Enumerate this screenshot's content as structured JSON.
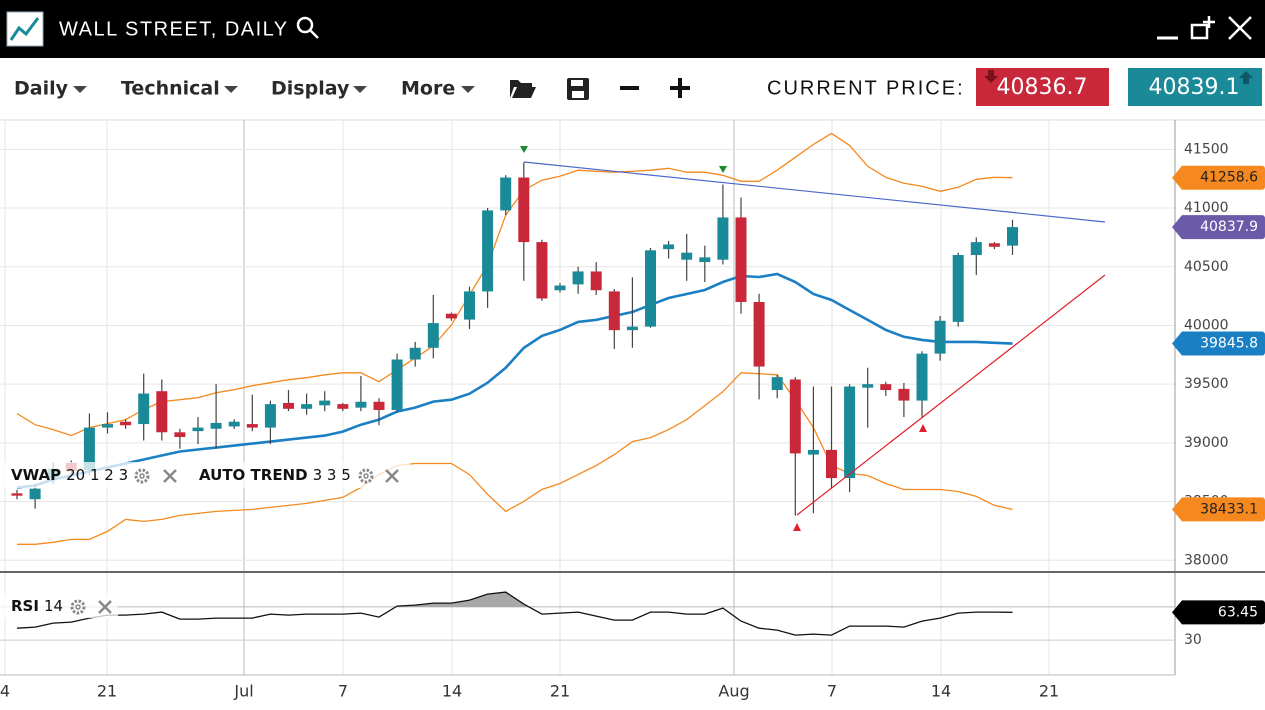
{
  "header": {
    "title": "WALL STREET, DAILY"
  },
  "toolbar": {
    "menus": [
      "Daily",
      "Technical",
      "Display",
      "More"
    ],
    "price_label": "CURRENT PRICE:",
    "bid": 40836.7,
    "ask": 40839.1
  },
  "chart_data": {
    "type": "candlestick",
    "ohlc": {
      "open": [
        38570,
        38520,
        38700,
        38830,
        38770,
        39130,
        39180,
        39160,
        39440,
        39090,
        39100,
        39120,
        39140,
        39160,
        39130,
        39340,
        39290,
        39320,
        39330,
        39300,
        39350,
        39280,
        39710,
        39810,
        40100,
        40050,
        40290,
        40980,
        41260,
        40710,
        40300,
        40350,
        40460,
        40290,
        39960,
        39990,
        40650,
        40560,
        40540,
        40560,
        40920,
        40200,
        39450,
        39540,
        38900,
        38940,
        38700,
        39470,
        39500,
        39460,
        39360,
        39760,
        40030,
        40600,
        40700,
        40680
      ],
      "high": [
        38600,
        38650,
        38830,
        38850,
        39250,
        39260,
        39200,
        39590,
        39540,
        39120,
        39220,
        39500,
        39200,
        39410,
        39360,
        39450,
        39420,
        39440,
        39340,
        39570,
        39380,
        39760,
        39860,
        40260,
        40110,
        40330,
        41000,
        41280,
        41390,
        40730,
        40360,
        40500,
        40540,
        40310,
        40410,
        40660,
        40720,
        40780,
        40680,
        41200,
        41090,
        40270,
        39580,
        39560,
        39480,
        39480,
        39500,
        39640,
        39520,
        39510,
        39780,
        40080,
        40620,
        40750,
        40710,
        40900
      ],
      "low": [
        38520,
        38440,
        38650,
        38720,
        38720,
        39080,
        39120,
        39020,
        39020,
        38950,
        38990,
        38950,
        39120,
        39100,
        38990,
        39270,
        39240,
        39270,
        39270,
        39270,
        39150,
        39260,
        39650,
        39720,
        40040,
        39970,
        40150,
        40940,
        40380,
        40210,
        40280,
        40270,
        40260,
        39800,
        39810,
        39980,
        40570,
        40380,
        40370,
        40520,
        40100,
        39370,
        39380,
        38380,
        38400,
        38610,
        38580,
        39130,
        39400,
        39220,
        39220,
        39700,
        39990,
        40430,
        40650,
        40600
      ],
      "close": [
        38550,
        38610,
        38780,
        38760,
        39130,
        39160,
        39150,
        39420,
        39090,
        39050,
        39130,
        39170,
        39180,
        39130,
        39330,
        39290,
        39330,
        39360,
        39290,
        39350,
        39280,
        39710,
        39810,
        40020,
        40060,
        40290,
        40980,
        41260,
        40710,
        40230,
        40340,
        40460,
        40300,
        39960,
        39990,
        40640,
        40690,
        40620,
        40580,
        40920,
        40200,
        39650,
        39560,
        38910,
        38940,
        38700,
        39480,
        39500,
        39450,
        39360,
        39760,
        40040,
        40600,
        40710,
        40670,
        40837.9
      ]
    },
    "up_color": "#1a8a99",
    "down_color": "#c8283a",
    "last_color": "#6a5aa8",
    "ylim": [
      37900,
      41750
    ],
    "yticks": [
      38000,
      38500,
      39000,
      39500,
      40000,
      40500,
      41000,
      41500
    ],
    "grid": true,
    "xtick_labels": [
      "4",
      "21",
      "Jul",
      "7",
      "14",
      "21",
      "Aug",
      "7",
      "14",
      "21"
    ],
    "lines": [
      {
        "color": "#1b7fc4",
        "values": [
          38620,
          38637,
          38688,
          38722,
          38756,
          38790,
          38824,
          38858,
          38892,
          38926,
          38943,
          38960,
          38977,
          38994,
          39011,
          39028,
          39045,
          39062,
          39096,
          39155,
          39198,
          39266,
          39300,
          39351,
          39368,
          39419,
          39512,
          39639,
          39809,
          39911,
          39962,
          40030,
          40047,
          40081,
          40115,
          40175,
          40234,
          40268,
          40302,
          40370,
          40421,
          40413,
          40438,
          40370,
          40268,
          40217,
          40132,
          40047,
          39962,
          39903,
          39877,
          39860,
          39860,
          39860,
          39852,
          39845.8
        ]
      },
      {
        "color": "#f5891f",
        "values": [
          39250,
          39155,
          39113,
          39062,
          39130,
          39164,
          39198,
          39283,
          39351,
          39368,
          39385,
          39427,
          39453,
          39487,
          39512,
          39538,
          39555,
          39580,
          39597,
          39597,
          39521,
          39622,
          39724,
          39826,
          40005,
          40260,
          40515,
          40939,
          41152,
          41237,
          41271,
          41322,
          41313,
          41305,
          41313,
          41322,
          41339,
          41305,
          41305,
          41279,
          41228,
          41228,
          41322,
          41432,
          41542,
          41636,
          41534,
          41356,
          41262,
          41211,
          41186,
          41143,
          41177,
          41245,
          41262,
          41258.6
        ]
      },
      {
        "color": "#f5891f",
        "values": [
          38136,
          38136,
          38153,
          38178,
          38178,
          38246,
          38348,
          38331,
          38348,
          38382,
          38399,
          38416,
          38425,
          38433,
          38450,
          38467,
          38484,
          38510,
          38535,
          38620,
          38730,
          38807,
          38824,
          38824,
          38824,
          38730,
          38561,
          38416,
          38501,
          38603,
          38654,
          38730,
          38807,
          38900,
          39011,
          39045,
          39113,
          39198,
          39317,
          39436,
          39597,
          39589,
          39580,
          39368,
          39130,
          38807,
          38739,
          38722,
          38654,
          38603,
          38603,
          38603,
          38586,
          38544,
          38467,
          38433.1
        ]
      }
    ],
    "indicators": [
      {
        "name": "VWAP",
        "params": "20 1 2 3"
      },
      {
        "name": "AUTO TREND",
        "params": "3 3 5"
      }
    ],
    "rsi": {
      "name": "RSI",
      "params": "14",
      "color": "#111111",
      "values": [
        44.4,
        45.7,
        50.5,
        51.7,
        56.5,
        60.1,
        60.1,
        61.3,
        63.7,
        55.3,
        55.3,
        56.5,
        56.5,
        56.5,
        61.3,
        60.1,
        61.3,
        61.3,
        61.3,
        62.5,
        57.7,
        70.9,
        72.1,
        74.5,
        74.5,
        78.2,
        85.4,
        87.8,
        73.3,
        61.3,
        62.5,
        63.7,
        58.9,
        54.1,
        54.1,
        63.7,
        63.7,
        61.3,
        61.3,
        68.5,
        52.9,
        44.4,
        42.0,
        36.0,
        37.2,
        36.0,
        46.9,
        46.9,
        46.9,
        45.7,
        52.9,
        56.5,
        62.5,
        63.7,
        63.7,
        63.45
      ],
      "ylim": [
        -12,
        112
      ],
      "yticks": [
        30
      ],
      "level": 70
    }
  }
}
